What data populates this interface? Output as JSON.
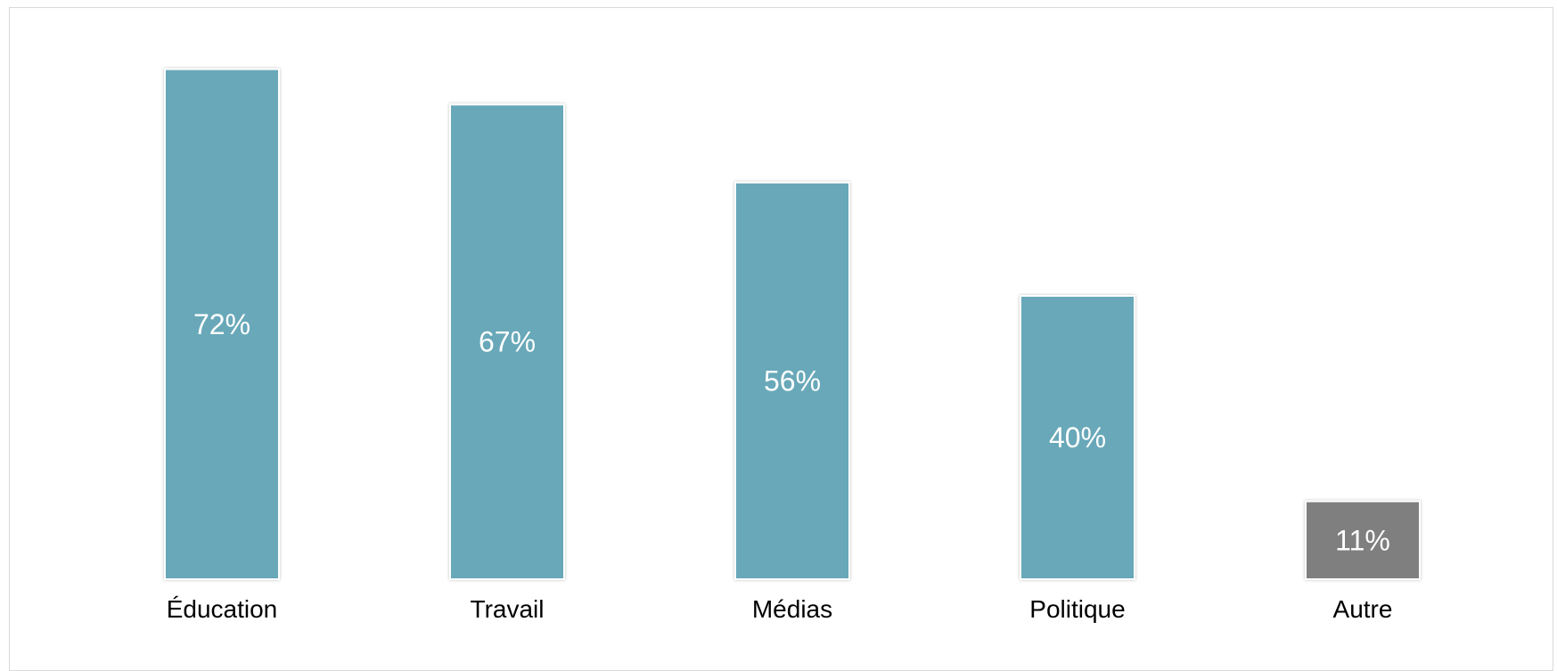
{
  "chart_data": {
    "type": "bar",
    "categories": [
      "Éducation",
      "Travail",
      "Médias",
      "Politique",
      "Autre"
    ],
    "values": [
      72,
      67,
      56,
      40,
      11
    ],
    "data_labels": [
      "72%",
      "67%",
      "56%",
      "40%",
      "11%"
    ],
    "ylim": [
      0,
      80
    ],
    "grid": false,
    "legend": "none",
    "colors": {
      "primary": "#67a8b9",
      "other": "#7f7f7f",
      "label_text": "#ffffff",
      "axis_text": "#000000",
      "frame": "#d9d9d9"
    },
    "bar_colors": [
      "#67a8b9",
      "#67a8b9",
      "#67a8b9",
      "#67a8b9",
      "#7f7f7f"
    ]
  }
}
